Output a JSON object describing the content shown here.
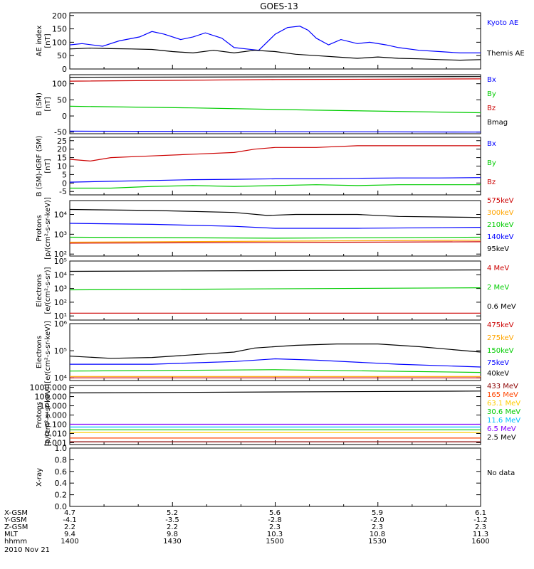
{
  "title": "GOES-13",
  "date": "2010 Nov 21",
  "ephemeris": {
    "labels": [
      "X-GSM",
      "Y-GSM",
      "Z-GSM",
      "MLT",
      "hhmm"
    ],
    "columns": [
      [
        "4.7",
        "-4.1",
        "2.2",
        "9.4",
        "1400"
      ],
      [
        "5.2",
        "-3.5",
        "2.2",
        "9.8",
        "1430"
      ],
      [
        "5.6",
        "-2.8",
        "2.3",
        "10.3",
        "1500"
      ],
      [
        "5.9",
        "-2.0",
        "2.3",
        "10.8",
        "1530"
      ],
      [
        "6.1",
        "-1.2",
        "2.3",
        "11.3",
        "1600"
      ]
    ]
  },
  "chart_data": [
    {
      "type": "line",
      "ylabel": "AE index\n[nT]",
      "yticks": [
        "0",
        "50",
        "100",
        "150",
        "200"
      ],
      "ylim": [
        0,
        210
      ],
      "x_range_hhmm": [
        "1400",
        "1600"
      ],
      "series": [
        {
          "name": "Kyoto AE",
          "color": "#0000ff",
          "x": [
            0,
            0.03,
            0.08,
            0.12,
            0.17,
            0.2,
            0.23,
            0.27,
            0.3,
            0.33,
            0.37,
            0.4,
            0.43,
            0.46,
            0.5,
            0.53,
            0.56,
            0.58,
            0.6,
            0.63,
            0.66,
            0.7,
            0.73,
            0.77,
            0.8,
            0.85,
            0.9,
            0.95,
            1
          ],
          "values": [
            90,
            95,
            85,
            105,
            120,
            140,
            130,
            110,
            120,
            135,
            115,
            80,
            75,
            70,
            130,
            155,
            160,
            145,
            115,
            90,
            110,
            95,
            100,
            90,
            80,
            70,
            65,
            60,
            60
          ]
        },
        {
          "name": "Themis AE",
          "color": "#000000",
          "x": [
            0,
            0.05,
            0.1,
            0.15,
            0.2,
            0.25,
            0.3,
            0.35,
            0.4,
            0.45,
            0.5,
            0.55,
            0.6,
            0.65,
            0.7,
            0.75,
            0.8,
            0.85,
            0.9,
            0.95,
            1
          ],
          "values": [
            75,
            78,
            76,
            75,
            73,
            65,
            60,
            70,
            60,
            70,
            65,
            55,
            50,
            45,
            40,
            45,
            40,
            38,
            35,
            33,
            35
          ]
        }
      ]
    },
    {
      "type": "line",
      "ylabel": "B (SM)\n[nT]",
      "yticks": [
        "-50",
        "0",
        "50",
        "100"
      ],
      "ylim": [
        -55,
        128
      ],
      "series": [
        {
          "name": "Bx",
          "color": "#0000ff",
          "x": [
            0,
            1
          ],
          "values": [
            -47,
            -50
          ]
        },
        {
          "name": "By",
          "color": "#00cc00",
          "x": [
            0,
            0.3,
            0.6,
            1
          ],
          "values": [
            30,
            25,
            18,
            10
          ]
        },
        {
          "name": "Bz",
          "color": "#cc0000",
          "x": [
            0,
            0.5,
            1
          ],
          "values": [
            108,
            113,
            115
          ]
        },
        {
          "name": "Bmag",
          "color": "#000000",
          "x": [
            0,
            1
          ],
          "values": [
            120,
            122
          ]
        }
      ]
    },
    {
      "type": "line",
      "ylabel": "B (SM)-IGRF (SM)\n[nT]",
      "yticks": [
        "-5",
        "0",
        "5",
        "10",
        "15",
        "20",
        "25"
      ],
      "ylim": [
        -7,
        27
      ],
      "series": [
        {
          "name": "Bx",
          "color": "#0000ff",
          "x": [
            0,
            0.1,
            0.2,
            0.3,
            0.4,
            0.5,
            0.6,
            0.7,
            0.8,
            0.9,
            1
          ],
          "values": [
            0.5,
            1,
            1.5,
            2,
            2.2,
            2.5,
            2.5,
            2.8,
            3,
            3,
            3.2
          ]
        },
        {
          "name": "By",
          "color": "#00cc00",
          "x": [
            0,
            0.1,
            0.2,
            0.3,
            0.4,
            0.5,
            0.6,
            0.7,
            0.8,
            0.9,
            1
          ],
          "values": [
            -3,
            -3,
            -2,
            -1.5,
            -2,
            -1.5,
            -1,
            -1.5,
            -1,
            -1,
            -1
          ]
        },
        {
          "name": "Bz",
          "color": "#cc0000",
          "x": [
            0,
            0.05,
            0.1,
            0.2,
            0.3,
            0.4,
            0.45,
            0.5,
            0.6,
            0.7,
            0.8,
            0.9,
            1
          ],
          "values": [
            14,
            13,
            15,
            16,
            17,
            18,
            20,
            21,
            21,
            22,
            22,
            22,
            22
          ]
        }
      ]
    },
    {
      "type": "line",
      "yscale": "log",
      "ylabel": "Protons\n[p/(cm²-s-sr-keV)]",
      "yticks": [
        "10²",
        "10³",
        "10⁴"
      ],
      "ylim_log10": [
        1.9,
        4.7
      ],
      "series": [
        {
          "name": "575keV",
          "color": "#cc0000",
          "x": [
            0,
            1
          ],
          "log10_values": [
            2.55,
            2.62
          ]
        },
        {
          "name": "300keV",
          "color": "#ffa500",
          "x": [
            0,
            1
          ],
          "log10_values": [
            2.6,
            2.7
          ]
        },
        {
          "name": "210keV",
          "color": "#00cc00",
          "x": [
            0,
            0.5,
            1
          ],
          "log10_values": [
            2.85,
            2.8,
            2.85
          ]
        },
        {
          "name": "140keV",
          "color": "#0000ff",
          "x": [
            0,
            0.2,
            0.4,
            0.5,
            0.7,
            1
          ],
          "log10_values": [
            3.55,
            3.5,
            3.4,
            3.3,
            3.3,
            3.35
          ]
        },
        {
          "name": "95keV",
          "color": "#000000",
          "x": [
            0,
            0.2,
            0.4,
            0.48,
            0.55,
            0.7,
            0.8,
            1
          ],
          "log10_values": [
            4.25,
            4.2,
            4.1,
            3.95,
            4.0,
            4.0,
            3.9,
            3.85
          ]
        }
      ]
    },
    {
      "type": "line",
      "yscale": "log",
      "ylabel": "Electrons\n[e/(cm²-s-sr)]",
      "yticks": [
        "10¹",
        "10²",
        "10³",
        "10⁴",
        "10⁵"
      ],
      "ylim_log10": [
        0.7,
        5
      ],
      "series": [
        {
          "name": "4 MeV",
          "color": "#cc0000",
          "x": [
            0,
            1
          ],
          "log10_values": [
            1.2,
            1.2
          ]
        },
        {
          "name": "2 MeV",
          "color": "#00cc00",
          "x": [
            0,
            1
          ],
          "log10_values": [
            2.9,
            3.05
          ]
        },
        {
          "name": "0.6 MeV",
          "color": "#000000",
          "x": [
            0,
            1
          ],
          "log10_values": [
            4.25,
            4.35
          ]
        }
      ]
    },
    {
      "type": "line",
      "yscale": "log",
      "ylabel": "Electrons\n[e/(cm²-s-sr-keV)]",
      "yticks": [
        "10⁴",
        "10⁵",
        "10⁶"
      ],
      "ylim_log10": [
        3.9,
        6
      ],
      "series": [
        {
          "name": "475keV",
          "color": "#cc0000",
          "x": [
            0,
            1
          ],
          "log10_values": [
            4.0,
            4.0
          ]
        },
        {
          "name": "275keV",
          "color": "#ffa500",
          "x": [
            0,
            1
          ],
          "log10_values": [
            4.05,
            4.05
          ]
        },
        {
          "name": "150keV",
          "color": "#00cc00",
          "x": [
            0,
            0.5,
            1
          ],
          "log10_values": [
            4.25,
            4.3,
            4.2
          ]
        },
        {
          "name": "75keV",
          "color": "#0000ff",
          "x": [
            0,
            0.2,
            0.4,
            0.5,
            0.6,
            0.8,
            1
          ],
          "log10_values": [
            4.5,
            4.5,
            4.6,
            4.7,
            4.65,
            4.5,
            4.4
          ]
        },
        {
          "name": "40keV",
          "color": "#000000",
          "x": [
            0,
            0.1,
            0.2,
            0.3,
            0.4,
            0.45,
            0.55,
            0.65,
            0.75,
            0.85,
            1
          ],
          "log10_values": [
            4.8,
            4.72,
            4.75,
            4.85,
            4.95,
            5.1,
            5.2,
            5.25,
            5.25,
            5.15,
            4.95
          ]
        }
      ]
    },
    {
      "type": "line",
      "yscale": "log",
      "ylabel": "Protons\n[p/(cm²-s-sr-keV)]",
      "yticks": [
        "0.001",
        "0.010",
        "0.100",
        "1.000",
        "10.000",
        "100.000",
        "1000.000"
      ],
      "ylim_log10": [
        -3.2,
        3.2
      ],
      "series": [
        {
          "name": "433 MeV",
          "color": "#8b0000",
          "x": [
            0,
            1
          ],
          "log10_values": [
            -2.9,
            -2.9
          ]
        },
        {
          "name": "165 MeV",
          "color": "#ff4500",
          "x": [
            0,
            1
          ],
          "log10_values": [
            -2.5,
            -2.5
          ]
        },
        {
          "name": "63.1 MeV",
          "color": "#ffcc00",
          "x": [
            0,
            1
          ],
          "log10_values": [
            -1.9,
            -1.9
          ]
        },
        {
          "name": "30.6 MeV",
          "color": "#00cc00",
          "x": [
            0,
            1
          ],
          "log10_values": [
            -1.6,
            -1.6
          ]
        },
        {
          "name": "11.6 MeV",
          "color": "#00bfff",
          "x": [
            0,
            1
          ],
          "log10_values": [
            -1.3,
            -1.3
          ]
        },
        {
          "name": "6.5 MeV",
          "color": "#8000ff",
          "x": [
            0,
            1
          ],
          "log10_values": [
            -1.0,
            -1.0
          ]
        },
        {
          "name": "2.5 MeV",
          "color": "#000000",
          "x": [
            0,
            1
          ],
          "log10_values": [
            2.4,
            2.6
          ]
        }
      ]
    },
    {
      "type": "line",
      "ylabel": "X-ray",
      "yticks": [
        "0.0",
        "0.2",
        "0.4",
        "0.6",
        "0.8",
        "1.0"
      ],
      "ylim": [
        0,
        1
      ],
      "series": [],
      "note": "No data"
    }
  ]
}
